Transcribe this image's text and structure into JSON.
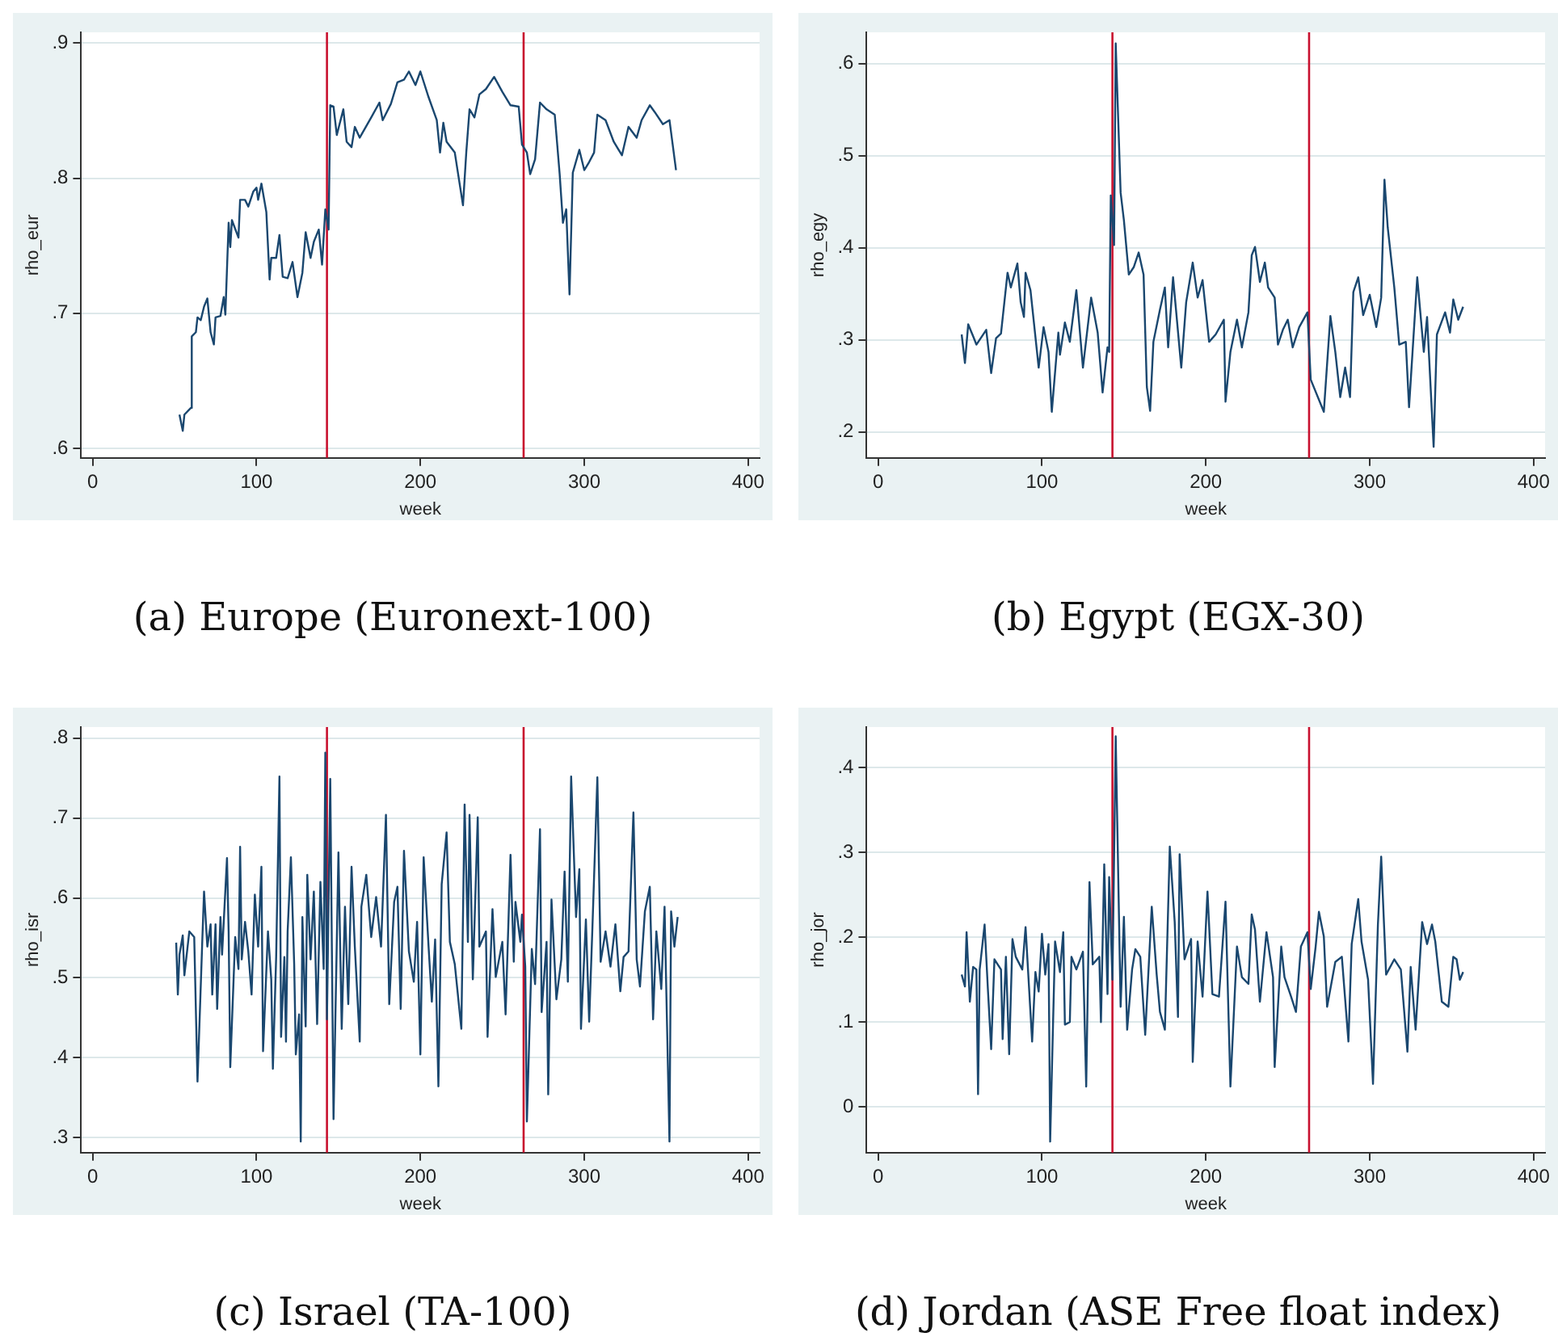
{
  "chart_data": [
    {
      "type": "line",
      "title": "(a) Europe (Euronext-100)",
      "xlabel": "week",
      "ylabel": "rho_eur",
      "grid": "y",
      "legend": false,
      "marker": "none",
      "xlim": [
        -7,
        407
      ],
      "xticks": [
        0,
        100,
        200,
        300,
        400
      ],
      "ylim": [
        0.593,
        0.908
      ],
      "yticks": [
        {
          "value": 0.6,
          "label": ".6"
        },
        {
          "value": 0.7,
          "label": ".7"
        },
        {
          "value": 0.8,
          "label": ".8"
        },
        {
          "value": 0.9,
          "label": ".9"
        }
      ],
      "ref_lines": [
        {
          "axis": "x",
          "value": 143,
          "color": "#c8102e"
        },
        {
          "axis": "x",
          "value": 263,
          "color": "#c8102e"
        }
      ],
      "x": [
        53,
        55,
        56,
        60,
        60.5,
        63,
        64,
        66,
        68,
        70,
        72,
        74,
        75,
        78,
        80,
        81,
        83,
        84,
        85,
        89,
        90,
        93,
        95,
        98,
        100,
        101,
        103,
        106,
        108,
        109,
        112,
        114,
        116,
        119,
        122,
        125,
        128,
        130,
        133,
        135,
        138,
        140,
        142,
        144,
        145,
        147,
        149,
        153,
        155,
        158,
        160,
        163,
        170,
        175,
        177,
        182,
        186,
        190,
        193,
        197,
        200,
        205,
        210,
        212,
        214,
        216,
        221,
        226,
        228,
        230,
        233,
        236,
        240,
        245,
        250,
        255,
        260,
        262,
        265,
        267,
        270,
        273,
        277,
        282,
        285,
        287,
        289,
        291,
        293,
        297,
        300,
        303,
        306,
        308,
        313,
        318,
        323,
        327,
        332,
        335,
        340,
        343,
        348,
        352,
        356
      ],
      "series": [
        {
          "color": "#1a476f",
          "values": [
            0.625,
            0.613,
            0.625,
            0.63,
            0.683,
            0.686,
            0.697,
            0.695,
            0.705,
            0.711,
            0.686,
            0.677,
            0.697,
            0.698,
            0.712,
            0.699,
            0.767,
            0.749,
            0.769,
            0.756,
            0.784,
            0.784,
            0.779,
            0.79,
            0.793,
            0.784,
            0.796,
            0.775,
            0.725,
            0.741,
            0.741,
            0.758,
            0.727,
            0.726,
            0.738,
            0.712,
            0.73,
            0.76,
            0.741,
            0.753,
            0.762,
            0.736,
            0.777,
            0.762,
            0.854,
            0.853,
            0.832,
            0.851,
            0.827,
            0.823,
            0.838,
            0.83,
            0.845,
            0.856,
            0.843,
            0.855,
            0.871,
            0.873,
            0.879,
            0.869,
            0.879,
            0.86,
            0.843,
            0.819,
            0.841,
            0.827,
            0.819,
            0.78,
            0.819,
            0.851,
            0.845,
            0.862,
            0.866,
            0.875,
            0.864,
            0.854,
            0.853,
            0.825,
            0.819,
            0.803,
            0.814,
            0.856,
            0.851,
            0.847,
            0.803,
            0.767,
            0.777,
            0.714,
            0.804,
            0.821,
            0.806,
            0.812,
            0.819,
            0.847,
            0.843,
            0.827,
            0.817,
            0.838,
            0.83,
            0.843,
            0.854,
            0.849,
            0.84,
            0.843,
            0.806
          ]
        }
      ]
    },
    {
      "type": "line",
      "title": "(b) Egypt (EGX-30)",
      "xlabel": "week",
      "ylabel": "rho_egy",
      "grid": "y",
      "legend": false,
      "marker": "none",
      "xlim": [
        -7,
        407
      ],
      "xticks": [
        0,
        100,
        200,
        300,
        400
      ],
      "ylim": [
        0.172,
        0.634
      ],
      "yticks": [
        {
          "value": 0.2,
          "label": ".2"
        },
        {
          "value": 0.3,
          "label": ".3"
        },
        {
          "value": 0.4,
          "label": ".4"
        },
        {
          "value": 0.5,
          "label": ".5"
        },
        {
          "value": 0.6,
          "label": ".6"
        }
      ],
      "ref_lines": [
        {
          "axis": "x",
          "value": 143,
          "color": "#c8102e"
        },
        {
          "axis": "x",
          "value": 263,
          "color": "#c8102e"
        }
      ],
      "x": [
        51,
        53,
        55,
        58,
        60,
        66,
        69,
        72,
        75,
        79,
        81,
        85,
        87,
        89,
        90,
        93,
        98,
        101,
        104,
        106,
        110,
        111,
        114,
        117,
        121,
        125,
        130,
        134,
        137,
        140,
        141,
        142,
        144,
        145,
        148,
        150,
        153,
        156,
        159,
        162,
        164,
        166,
        168,
        172,
        175,
        177,
        180,
        185,
        188,
        192,
        195,
        198,
        202,
        206,
        211,
        212,
        215,
        219,
        222,
        226,
        228,
        230,
        233,
        236,
        238,
        242,
        244,
        247,
        250,
        253,
        257,
        262,
        264,
        272,
        276,
        279,
        282,
        285,
        288,
        290,
        293,
        296,
        300,
        304,
        307,
        309,
        311,
        315,
        318,
        322,
        324,
        329,
        333,
        335,
        339,
        341,
        346,
        349,
        351,
        354,
        357
      ],
      "series": [
        {
          "color": "#1a476f",
          "values": [
            0.306,
            0.275,
            0.317,
            0.304,
            0.295,
            0.311,
            0.264,
            0.302,
            0.307,
            0.373,
            0.357,
            0.383,
            0.341,
            0.325,
            0.373,
            0.354,
            0.27,
            0.314,
            0.287,
            0.222,
            0.308,
            0.284,
            0.319,
            0.298,
            0.354,
            0.27,
            0.346,
            0.308,
            0.243,
            0.292,
            0.287,
            0.457,
            0.403,
            0.622,
            0.46,
            0.43,
            0.371,
            0.379,
            0.395,
            0.371,
            0.249,
            0.223,
            0.298,
            0.333,
            0.357,
            0.292,
            0.368,
            0.27,
            0.341,
            0.384,
            0.346,
            0.365,
            0.298,
            0.306,
            0.322,
            0.233,
            0.287,
            0.322,
            0.292,
            0.33,
            0.392,
            0.401,
            0.363,
            0.384,
            0.357,
            0.346,
            0.295,
            0.311,
            0.322,
            0.292,
            0.314,
            0.33,
            0.257,
            0.222,
            0.326,
            0.287,
            0.238,
            0.27,
            0.238,
            0.352,
            0.368,
            0.327,
            0.349,
            0.314,
            0.346,
            0.474,
            0.422,
            0.357,
            0.295,
            0.298,
            0.227,
            0.368,
            0.287,
            0.325,
            0.184,
            0.306,
            0.33,
            0.308,
            0.344,
            0.322,
            0.336
          ]
        }
      ]
    },
    {
      "type": "line",
      "title": "(c) Israel (TA-100)",
      "xlabel": "week",
      "ylabel": "rho_isr",
      "grid": "y",
      "legend": false,
      "marker": "none",
      "xlim": [
        -7,
        407
      ],
      "xticks": [
        0,
        100,
        200,
        300,
        400
      ],
      "ylim": [
        0.281,
        0.814
      ],
      "yticks": [
        {
          "value": 0.3,
          "label": ".3"
        },
        {
          "value": 0.4,
          "label": ".4"
        },
        {
          "value": 0.5,
          "label": ".5"
        },
        {
          "value": 0.6,
          "label": ".6"
        },
        {
          "value": 0.7,
          "label": ".7"
        },
        {
          "value": 0.8,
          "label": ".8"
        }
      ],
      "ref_lines": [
        {
          "axis": "x",
          "value": 143,
          "color": "#c8102e"
        },
        {
          "axis": "x",
          "value": 263,
          "color": "#c8102e"
        }
      ],
      "x": [
        51,
        52,
        53,
        55,
        56,
        59,
        62,
        64,
        67,
        68,
        70,
        72,
        73,
        75,
        76,
        78,
        79,
        82,
        83,
        84,
        87,
        89,
        90,
        91,
        93,
        95,
        97,
        99,
        101,
        103,
        104,
        107,
        109,
        110,
        112,
        114,
        115,
        117,
        118,
        119,
        121,
        123,
        124,
        126,
        127,
        128,
        130,
        131,
        133,
        135,
        137,
        139,
        141,
        142,
        143,
        145,
        146,
        147,
        150,
        152,
        154,
        156,
        158,
        160,
        163,
        164,
        167,
        170,
        173,
        176,
        179,
        181,
        184,
        186,
        188,
        190,
        193,
        196,
        198,
        200,
        202,
        205,
        207,
        209,
        211,
        213,
        216,
        218,
        221,
        225,
        227,
        229,
        230,
        232,
        235,
        236,
        240,
        241,
        244,
        246,
        250,
        252,
        255,
        257,
        258,
        261,
        262,
        264,
        265,
        268,
        270,
        273,
        274,
        277,
        278,
        280,
        283,
        286,
        288,
        290,
        292,
        295,
        297,
        298,
        301,
        303,
        305,
        308,
        310,
        313,
        316,
        319,
        322,
        324,
        327,
        330,
        332,
        334,
        337,
        340,
        342,
        344,
        347,
        349,
        352,
        353,
        355,
        357
      ],
      "series": [
        {
          "color": "#1a476f",
          "values": [
            0.544,
            0.479,
            0.529,
            0.553,
            0.503,
            0.558,
            0.551,
            0.37,
            0.551,
            0.608,
            0.539,
            0.567,
            0.479,
            0.567,
            0.461,
            0.576,
            0.529,
            0.65,
            0.558,
            0.388,
            0.551,
            0.511,
            0.664,
            0.523,
            0.57,
            0.533,
            0.479,
            0.604,
            0.539,
            0.639,
            0.408,
            0.558,
            0.498,
            0.386,
            0.526,
            0.752,
            0.426,
            0.526,
            0.42,
            0.558,
            0.651,
            0.517,
            0.404,
            0.454,
            0.295,
            0.576,
            0.439,
            0.629,
            0.523,
            0.608,
            0.442,
            0.62,
            0.511,
            0.782,
            0.448,
            0.749,
            0.536,
            0.323,
            0.657,
            0.436,
            0.589,
            0.467,
            0.639,
            0.539,
            0.42,
            0.589,
            0.629,
            0.551,
            0.601,
            0.539,
            0.704,
            0.467,
            0.595,
            0.614,
            0.461,
            0.659,
            0.533,
            0.495,
            0.57,
            0.404,
            0.651,
            0.539,
            0.47,
            0.548,
            0.364,
            0.617,
            0.682,
            0.545,
            0.517,
            0.436,
            0.717,
            0.545,
            0.704,
            0.498,
            0.701,
            0.539,
            0.558,
            0.426,
            0.586,
            0.501,
            0.545,
            0.454,
            0.654,
            0.52,
            0.595,
            0.545,
            0.579,
            0.514,
            0.32,
            0.536,
            0.492,
            0.686,
            0.457,
            0.545,
            0.354,
            0.598,
            0.473,
            0.523,
            0.633,
            0.495,
            0.752,
            0.576,
            0.636,
            0.436,
            0.573,
            0.445,
            0.564,
            0.751,
            0.52,
            0.558,
            0.514,
            0.567,
            0.483,
            0.526,
            0.533,
            0.707,
            0.523,
            0.489,
            0.583,
            0.614,
            0.448,
            0.558,
            0.486,
            0.589,
            0.295,
            0.583,
            0.539,
            0.576
          ]
        }
      ]
    },
    {
      "type": "line",
      "title": "(d) Jordan (ASE Free float index)",
      "xlabel": "week",
      "ylabel": "rho_jor",
      "grid": "y",
      "legend": false,
      "marker": "none",
      "xlim": [
        -7,
        407
      ],
      "xticks": [
        0,
        100,
        200,
        300,
        400
      ],
      "ylim": [
        -0.054,
        0.448
      ],
      "yticks": [
        {
          "value": 0,
          "label": "0"
        },
        {
          "value": 0.1,
          "label": ".1"
        },
        {
          "value": 0.2,
          "label": ".2"
        },
        {
          "value": 0.3,
          "label": ".3"
        },
        {
          "value": 0.4,
          "label": ".4"
        }
      ],
      "ref_lines": [
        {
          "axis": "x",
          "value": 143,
          "color": "#c8102e"
        },
        {
          "axis": "x",
          "value": 263,
          "color": "#c8102e"
        }
      ],
      "x": [
        51,
        53,
        54,
        56,
        58,
        60,
        61,
        62,
        65,
        67,
        69,
        71,
        75,
        76,
        78,
        80,
        82,
        84,
        88,
        90,
        94,
        96,
        98,
        100,
        102,
        104,
        105,
        108,
        111,
        113,
        114,
        117,
        118,
        121,
        125,
        127,
        129,
        131,
        135,
        136,
        138,
        140,
        141,
        143,
        145,
        148,
        150,
        152,
        155,
        157,
        160,
        163,
        167,
        170,
        172,
        175,
        178,
        181,
        183,
        184,
        187,
        191,
        192,
        195,
        198,
        201,
        204,
        208,
        212,
        215,
        219,
        222,
        226,
        228,
        230,
        233,
        237,
        241,
        242,
        246,
        248,
        252,
        255,
        258,
        262,
        264,
        267,
        269,
        272,
        274,
        279,
        283,
        287,
        289,
        293,
        295,
        299,
        302,
        305,
        307,
        310,
        315,
        319,
        323,
        325,
        328,
        332,
        335,
        338,
        340,
        344,
        348,
        351,
        353,
        355,
        357
      ],
      "series": [
        {
          "color": "#1a476f",
          "values": [
            0.156,
            0.142,
            0.206,
            0.124,
            0.165,
            0.162,
            0.015,
            0.162,
            0.215,
            0.139,
            0.068,
            0.174,
            0.162,
            0.08,
            0.177,
            0.062,
            0.198,
            0.177,
            0.162,
            0.212,
            0.077,
            0.159,
            0.136,
            0.204,
            0.156,
            0.192,
            -0.041,
            0.195,
            0.159,
            0.206,
            0.097,
            0.1,
            0.177,
            0.162,
            0.183,
            0.024,
            0.265,
            0.168,
            0.177,
            0.1,
            0.286,
            0.133,
            0.271,
            0.15,
            0.437,
            0.118,
            0.224,
            0.091,
            0.162,
            0.186,
            0.177,
            0.085,
            0.236,
            0.156,
            0.112,
            0.091,
            0.307,
            0.218,
            0.106,
            0.298,
            0.174,
            0.198,
            0.053,
            0.195,
            0.13,
            0.254,
            0.133,
            0.13,
            0.242,
            0.024,
            0.189,
            0.153,
            0.145,
            0.227,
            0.209,
            0.124,
            0.206,
            0.153,
            0.047,
            0.189,
            0.153,
            0.13,
            0.112,
            0.189,
            0.206,
            0.139,
            0.189,
            0.23,
            0.201,
            0.118,
            0.171,
            0.177,
            0.077,
            0.192,
            0.245,
            0.195,
            0.15,
            0.027,
            0.215,
            0.295,
            0.156,
            0.174,
            0.162,
            0.065,
            0.165,
            0.091,
            0.218,
            0.192,
            0.215,
            0.195,
            0.124,
            0.118,
            0.177,
            0.174,
            0.15,
            0.159
          ]
        }
      ]
    }
  ]
}
